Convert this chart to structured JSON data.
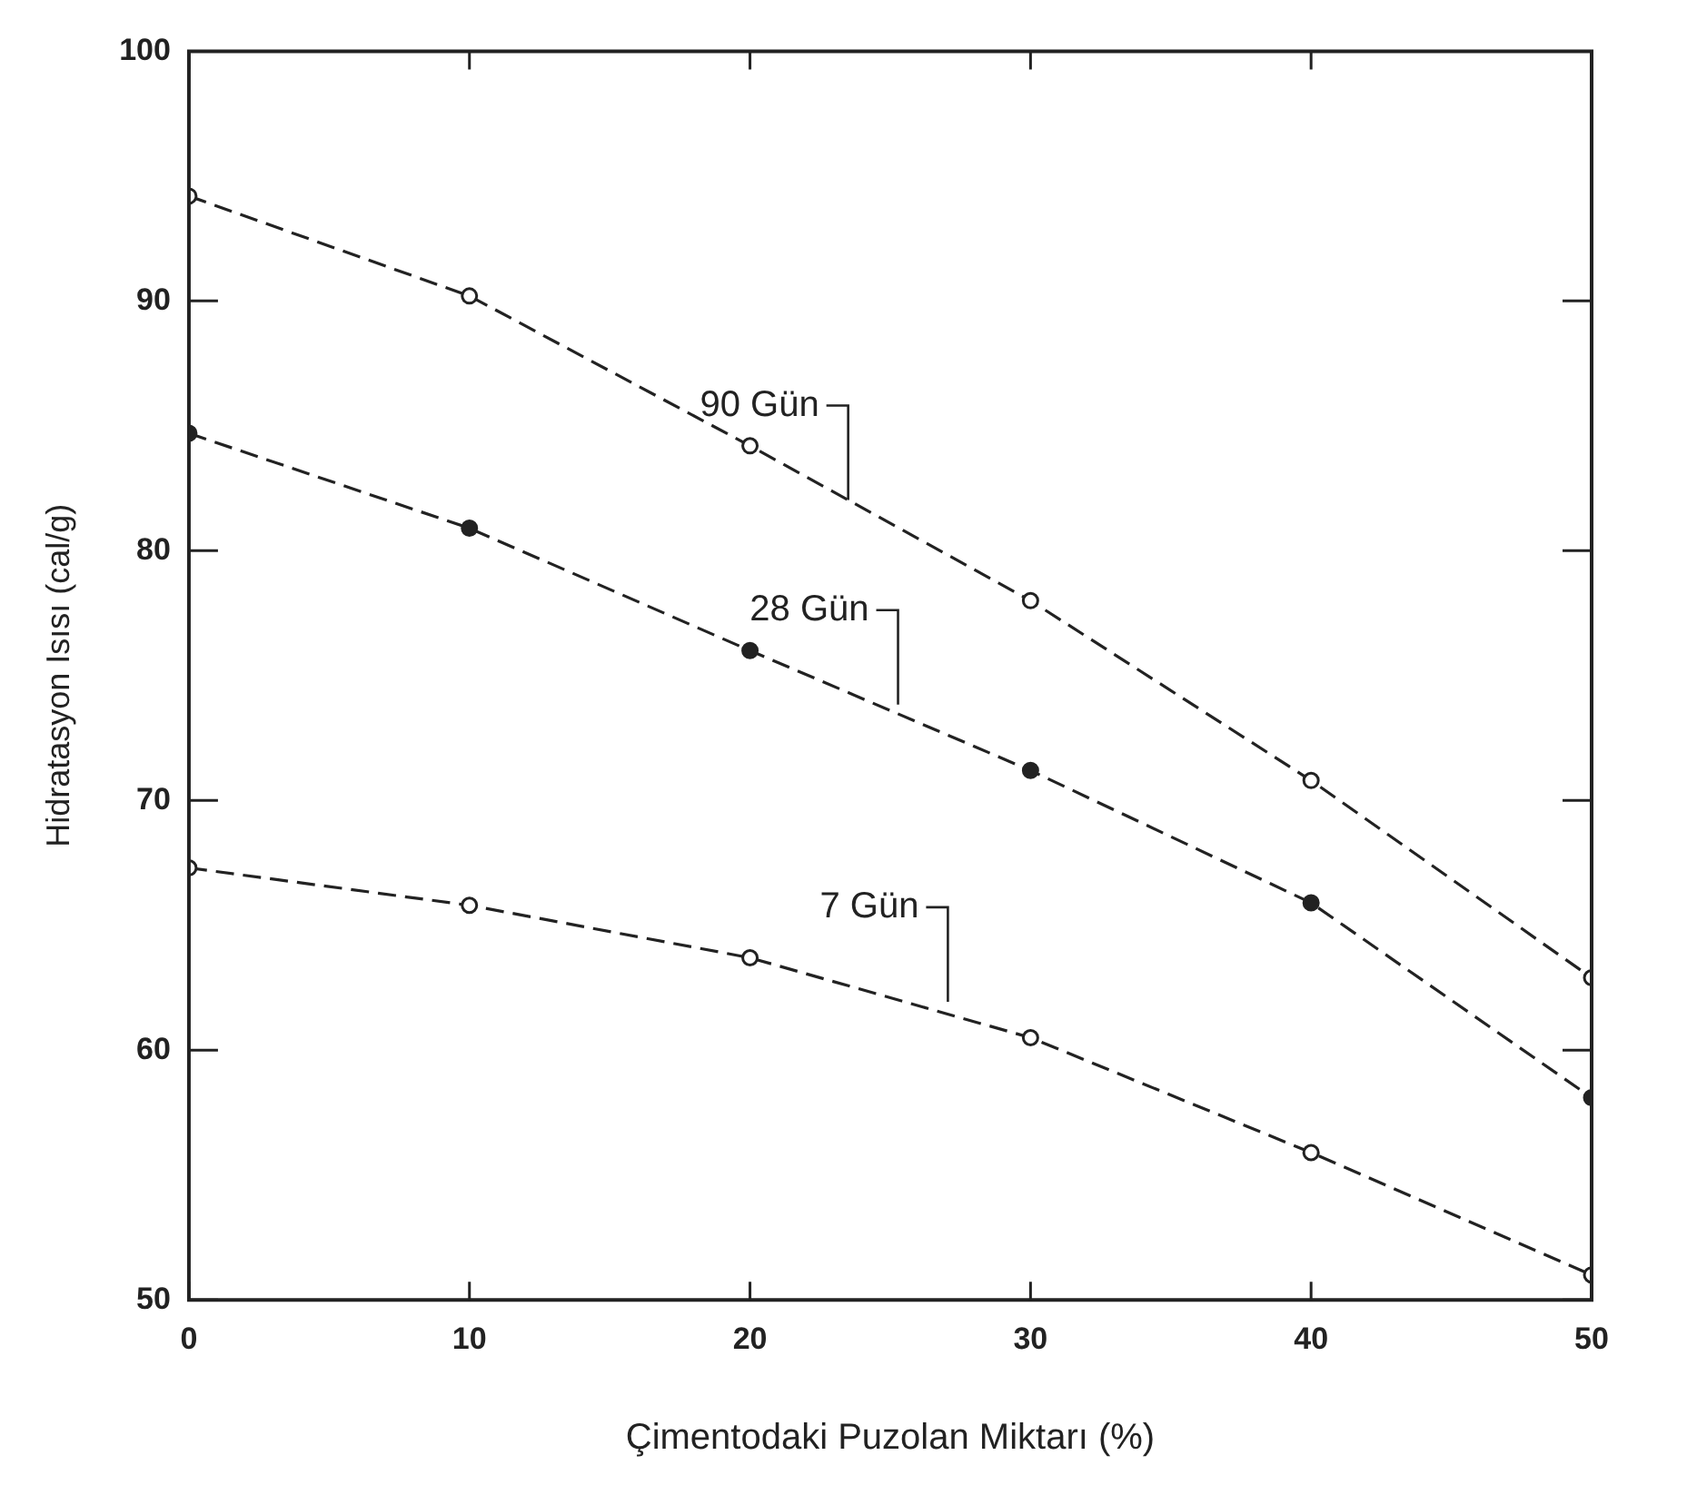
{
  "chart_data": {
    "type": "line",
    "xlabel": "Çimentodaki Puzolan Miktarı (%)",
    "ylabel": "Hidratasyon Isısı (cal/g)",
    "x": [
      0,
      10,
      20,
      30,
      40,
      50
    ],
    "series": [
      {
        "name": "90 Gün",
        "color": "#222222",
        "values": [
          94.2,
          90.2,
          84.2,
          78.0,
          70.8,
          62.9
        ]
      },
      {
        "name": "28 Gün",
        "color": "#222222",
        "values": [
          84.7,
          80.9,
          76.0,
          71.2,
          65.9,
          58.1
        ]
      },
      {
        "name": "7 Gün",
        "color": "#222222",
        "values": [
          67.3,
          65.8,
          63.7,
          60.5,
          55.9,
          51.0
        ]
      }
    ],
    "xlim": [
      0,
      50
    ],
    "xticks": [
      0,
      10,
      20,
      30,
      40,
      50
    ],
    "ylim": [
      50,
      100
    ],
    "yticks": [
      50,
      60,
      70,
      80,
      90,
      100
    ],
    "grid": false,
    "legend": false,
    "marker": "circle",
    "line_style": "dashed"
  }
}
